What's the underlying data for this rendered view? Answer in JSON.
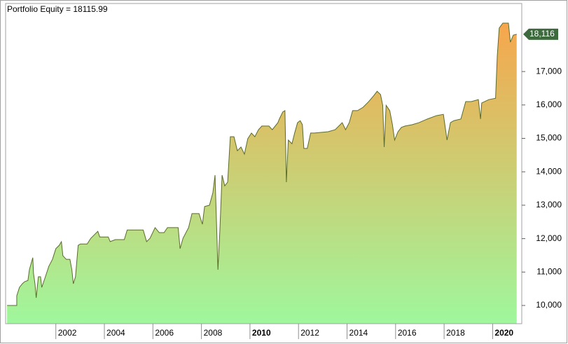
{
  "chart_data": {
    "type": "area",
    "title": "Portfolio Equity = 18115.99",
    "color": "#5b6b2c",
    "fill_top": "#f7a64c",
    "fill_bottom": "#9ff79d",
    "x": [
      1999.99,
      2000.39,
      2000.39,
      2000.5,
      2000.62,
      2000.71,
      2000.85,
      2000.91,
      2000.99,
      2001.05,
      2001.08,
      2001.14,
      2001.19,
      2001.28,
      2001.37,
      2001.42,
      2001.57,
      2001.71,
      2001.86,
      2002.0,
      2002.14,
      2002.23,
      2002.29,
      2002.43,
      2002.58,
      2002.66,
      2002.72,
      2002.81,
      2002.92,
      2003.01,
      2003.29,
      2003.44,
      2003.73,
      2003.81,
      2004.16,
      2004.24,
      2004.45,
      2004.82,
      2004.94,
      2005.6,
      2005.74,
      2005.88,
      2006.09,
      2006.26,
      2006.46,
      2006.6,
      2007.04,
      2007.12,
      2007.24,
      2007.47,
      2007.61,
      2007.9,
      2008.04,
      2008.13,
      2008.33,
      2008.47,
      2008.56,
      2008.68,
      2008.76,
      2008.85,
      2008.96,
      2009.08,
      2009.19,
      2009.34,
      2009.48,
      2009.63,
      2009.77,
      2009.91,
      2010.06,
      2010.2,
      2010.35,
      2010.49,
      2010.78,
      2010.92,
      2011.15,
      2011.21,
      2011.35,
      2011.44,
      2011.5,
      2011.58,
      2011.73,
      2011.84,
      2011.96,
      2012.07,
      2012.16,
      2012.22,
      2012.36,
      2012.5,
      2012.65,
      2013.22,
      2013.51,
      2013.8,
      2013.94,
      2014.09,
      2014.23,
      2014.43,
      2014.66,
      2014.89,
      2015.09,
      2015.24,
      2015.38,
      2015.47,
      2015.53,
      2015.61,
      2015.76,
      2015.87,
      2015.96,
      2016.1,
      2016.24,
      2016.39,
      2016.68,
      2016.96,
      2017.31,
      2017.68,
      2017.97,
      2018.12,
      2018.26,
      2018.4,
      2018.69,
      2018.89,
      2019.12,
      2019.41,
      2019.5,
      2019.55,
      2019.84,
      2020.12,
      2020.19,
      2020.27,
      2020.42,
      2020.65,
      2020.73,
      2020.85,
      2020.99
    ],
    "values": [
      10000,
      10000,
      10290,
      10540,
      10650,
      10710,
      10750,
      11070,
      11280,
      11430,
      10960,
      10650,
      10230,
      10860,
      10860,
      10540,
      10860,
      11170,
      11380,
      11700,
      11800,
      11910,
      11490,
      11380,
      11380,
      11070,
      10650,
      10860,
      11800,
      11840,
      11840,
      12010,
      12220,
      12050,
      12050,
      11910,
      11970,
      11970,
      12260,
      12260,
      11910,
      12010,
      12330,
      12180,
      12180,
      12330,
      12330,
      11700,
      12010,
      12330,
      12750,
      12750,
      12430,
      12960,
      13000,
      13370,
      13900,
      11070,
      12260,
      13900,
      13580,
      13690,
      15050,
      15050,
      14630,
      14740,
      14530,
      14990,
      15160,
      15050,
      15260,
      15370,
      15370,
      15260,
      15470,
      15580,
      15790,
      15830,
      13690,
      14950,
      14840,
      15160,
      15470,
      15530,
      15410,
      14700,
      14700,
      15160,
      15160,
      15200,
      15260,
      15470,
      15260,
      15470,
      15830,
      15830,
      15930,
      16100,
      16270,
      16410,
      16310,
      15990,
      14740,
      15990,
      15830,
      15410,
      14950,
      15200,
      15330,
      15370,
      15410,
      15470,
      15580,
      15680,
      15720,
      14950,
      15470,
      15530,
      15580,
      16100,
      16100,
      16160,
      15580,
      16060,
      16160,
      16200,
      17460,
      18300,
      18450,
      18450,
      17880,
      18090,
      18115.99
    ],
    "xlim": [
      1999.93,
      2021.2
    ],
    "xticks": [
      2002,
      2004,
      2006,
      2008,
      2010,
      2012,
      2014,
      2016,
      2018,
      2020
    ],
    "ylim": [
      9455,
      19036
    ],
    "yticks": [
      {
        "value": 10000,
        "label": "10,000"
      },
      {
        "value": 11000,
        "label": "11,000"
      },
      {
        "value": 12000,
        "label": "12,000"
      },
      {
        "value": 13000,
        "label": "13,000"
      },
      {
        "value": 14000,
        "label": "14,000"
      },
      {
        "value": 15000,
        "label": "15,000"
      },
      {
        "value": 16000,
        "label": "16,000"
      },
      {
        "value": 17000,
        "label": "17,000"
      }
    ],
    "annotations": [
      {
        "value": 18115.99,
        "label": "18,116",
        "color": "#3d6b3d"
      }
    ]
  }
}
